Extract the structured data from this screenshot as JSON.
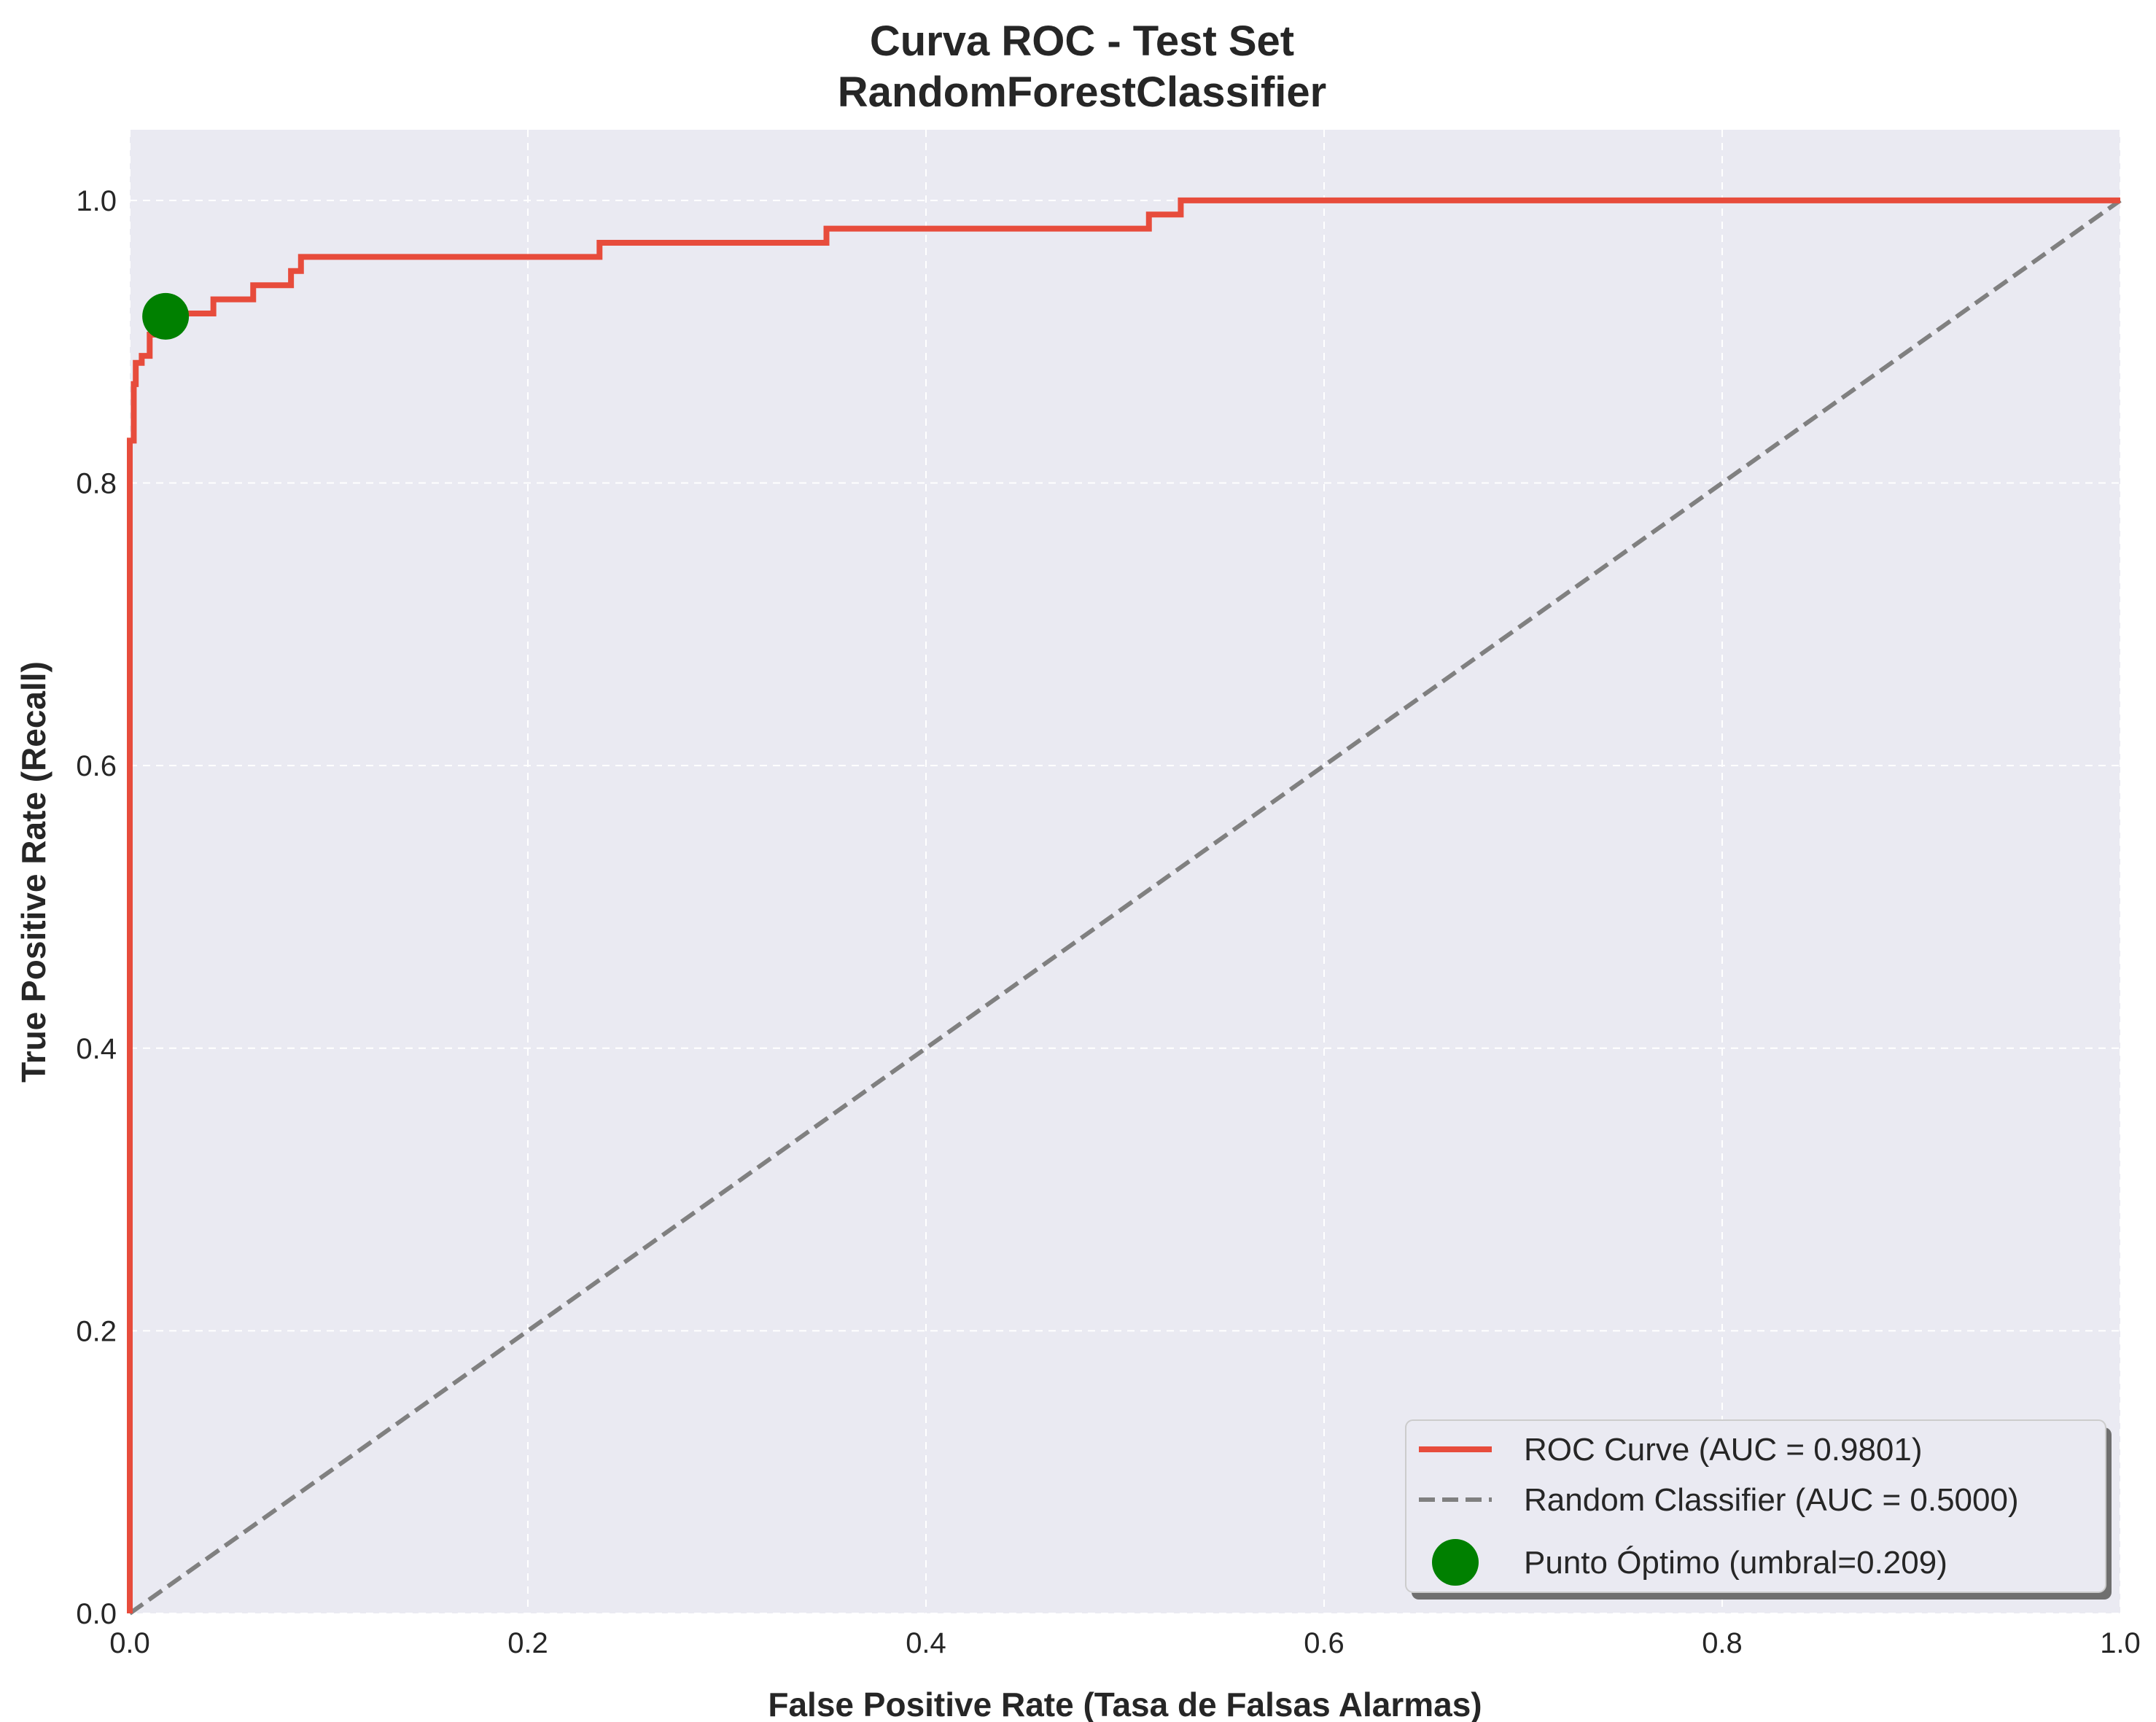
{
  "chart_data": {
    "type": "line",
    "title_line1": "Curva ROC - Test Set",
    "title_line2": "RandomForestClassifier",
    "xlabel": "False Positive Rate (Tasa de Falsas Alarmas)",
    "ylabel": "True Positive Rate (Recall)",
    "xlim": [
      0.0,
      1.0
    ],
    "ylim": [
      0.0,
      1.05
    ],
    "xticks": [
      "0.0",
      "0.2",
      "0.4",
      "0.6",
      "0.8",
      "1.0"
    ],
    "yticks": [
      "0.0",
      "0.2",
      "0.4",
      "0.6",
      "0.8",
      "1.0"
    ],
    "grid": true,
    "legend_position": "bottom-right",
    "series": [
      {
        "name": "ROC Curve (AUC = 0.9801)",
        "style": "solid",
        "color": "#e74c3c",
        "x": [
          0.0,
          0.0,
          0.002,
          0.002,
          0.003,
          0.003,
          0.006,
          0.006,
          0.01,
          0.01,
          0.014,
          0.014,
          0.042,
          0.042,
          0.062,
          0.062,
          0.081,
          0.081,
          0.086,
          0.086,
          0.236,
          0.236,
          0.35,
          0.35,
          0.512,
          0.512,
          0.528,
          0.528,
          1.0
        ],
        "y": [
          0.0,
          0.83,
          0.83,
          0.87,
          0.87,
          0.885,
          0.885,
          0.89,
          0.89,
          0.905,
          0.905,
          0.92,
          0.92,
          0.93,
          0.93,
          0.94,
          0.94,
          0.95,
          0.95,
          0.96,
          0.96,
          0.97,
          0.97,
          0.98,
          0.98,
          0.99,
          0.99,
          1.0,
          1.0
        ]
      },
      {
        "name": "Random Classifier (AUC = 0.5000)",
        "style": "dashed",
        "color": "#808080",
        "x": [
          0.0,
          1.0
        ],
        "y": [
          0.0,
          1.0
        ]
      },
      {
        "name": "Punto Óptimo (umbral=0.209)",
        "style": "marker",
        "color": "#008000",
        "x": [
          0.018
        ],
        "y": [
          0.918
        ]
      }
    ]
  },
  "colors": {
    "plot_background": "#eaeaf2",
    "grid": "#ffffff",
    "text": "#262626"
  }
}
